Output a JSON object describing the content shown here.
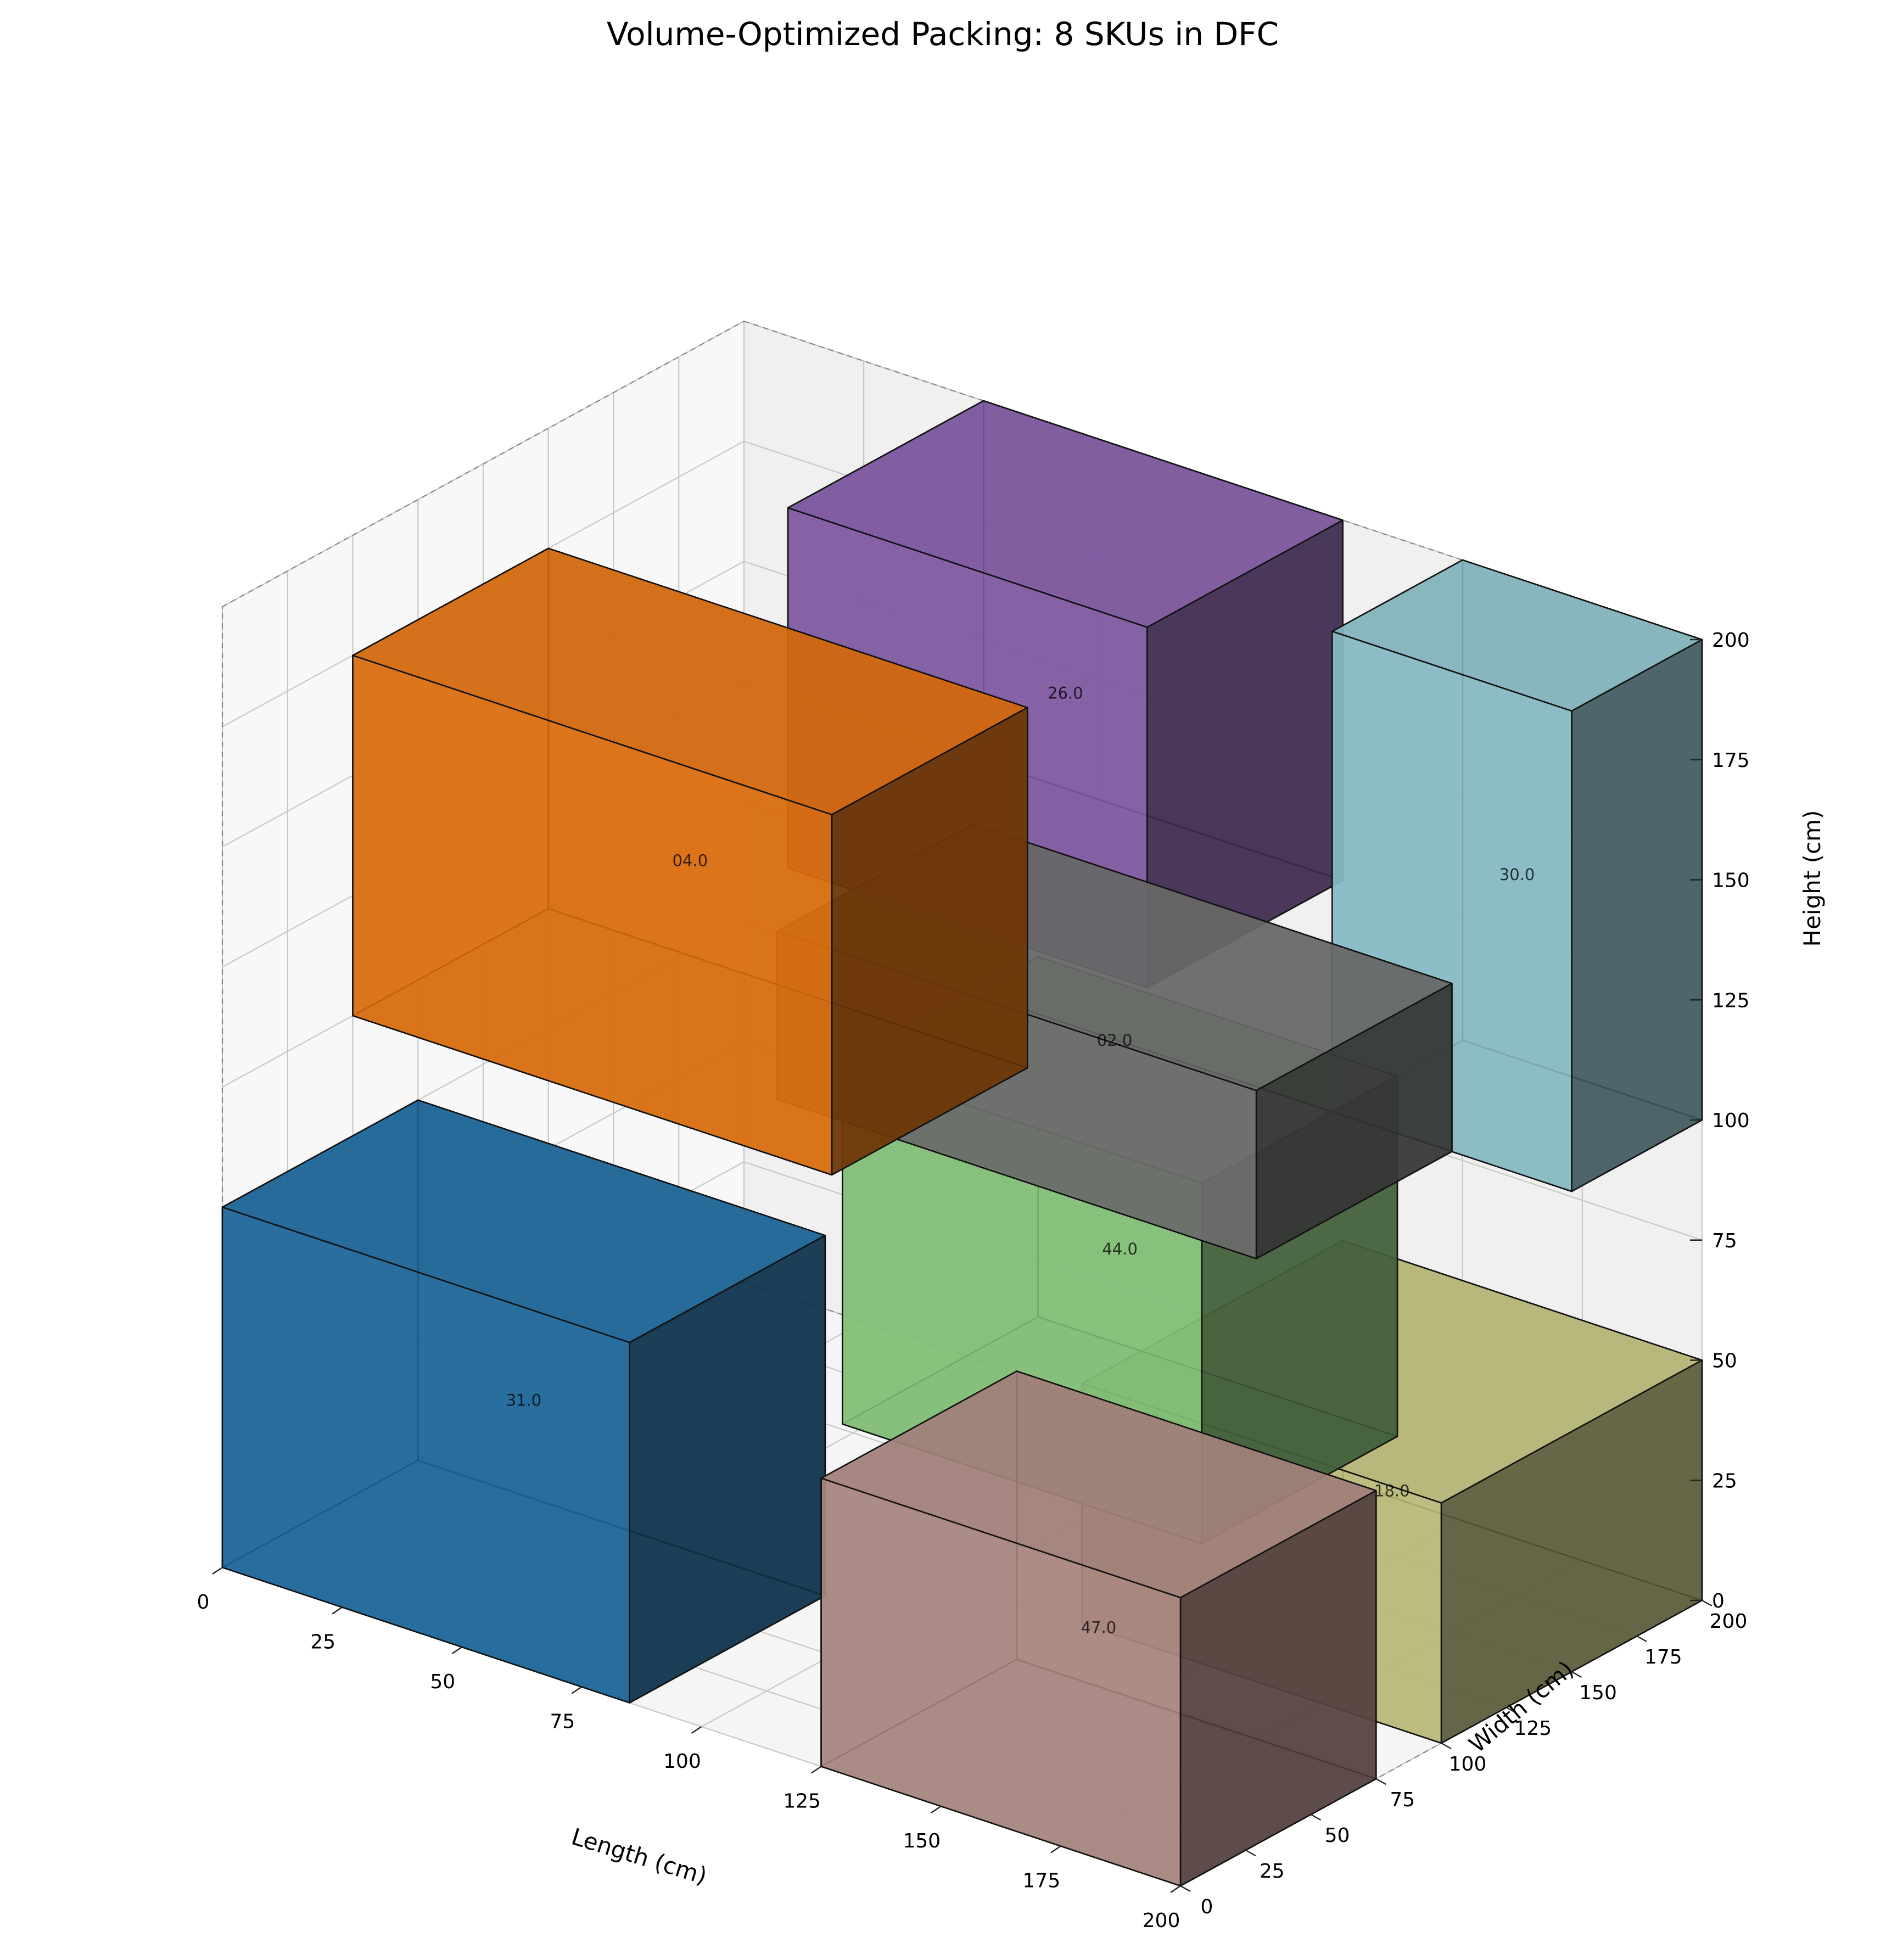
{
  "chart_data": {
    "type": "3d-box-packing",
    "title": "Volume-Optimized Packing: 8 SKUs in DFC",
    "xlabel": "Length (cm)",
    "ylabel": "Width (cm)",
    "zlabel": "Height (cm)",
    "xlim": [
      0,
      200
    ],
    "ylim": [
      0,
      200
    ],
    "zlim": [
      0,
      200
    ],
    "ticks": [
      0,
      25,
      50,
      75,
      100,
      125,
      150,
      175,
      200
    ],
    "grid": true,
    "boxes": [
      {
        "label": "26.0",
        "x": 50,
        "y": 125,
        "z": 125,
        "dx": 75,
        "dy": 75,
        "dz": 75,
        "color": "#9467bd"
      },
      {
        "label": "30.0",
        "x": 150,
        "y": 150,
        "z": 100,
        "dx": 50,
        "dy": 50,
        "dz": 100,
        "color": "#9edae5"
      },
      {
        "label": "04.0",
        "x": 0,
        "y": 50,
        "z": 100,
        "dx": 100,
        "dy": 75,
        "dz": 75,
        "color": "#ff7f0e"
      },
      {
        "label": "02.0",
        "x": 75,
        "y": 75,
        "z": 100,
        "dx": 100,
        "dy": 75,
        "dz": 35,
        "color": "#7f7f7f"
      },
      {
        "label": "44.0",
        "x": 75,
        "y": 100,
        "z": 25,
        "dx": 75,
        "dy": 75,
        "dz": 75,
        "color": "#98df8a"
      },
      {
        "label": "18.0",
        "x": 125,
        "y": 100,
        "z": 0,
        "dx": 75,
        "dy": 100,
        "dz": 50,
        "color": "#dbdb8d"
      },
      {
        "label": "31.0",
        "x": 0,
        "y": 0,
        "z": 0,
        "dx": 85,
        "dy": 75,
        "dz": 75,
        "color": "#1f77b4"
      },
      {
        "label": "47.0",
        "x": 125,
        "y": 0,
        "z": 0,
        "dx": 75,
        "dy": 75,
        "dz": 60,
        "color": "#c49c94"
      }
    ]
  }
}
